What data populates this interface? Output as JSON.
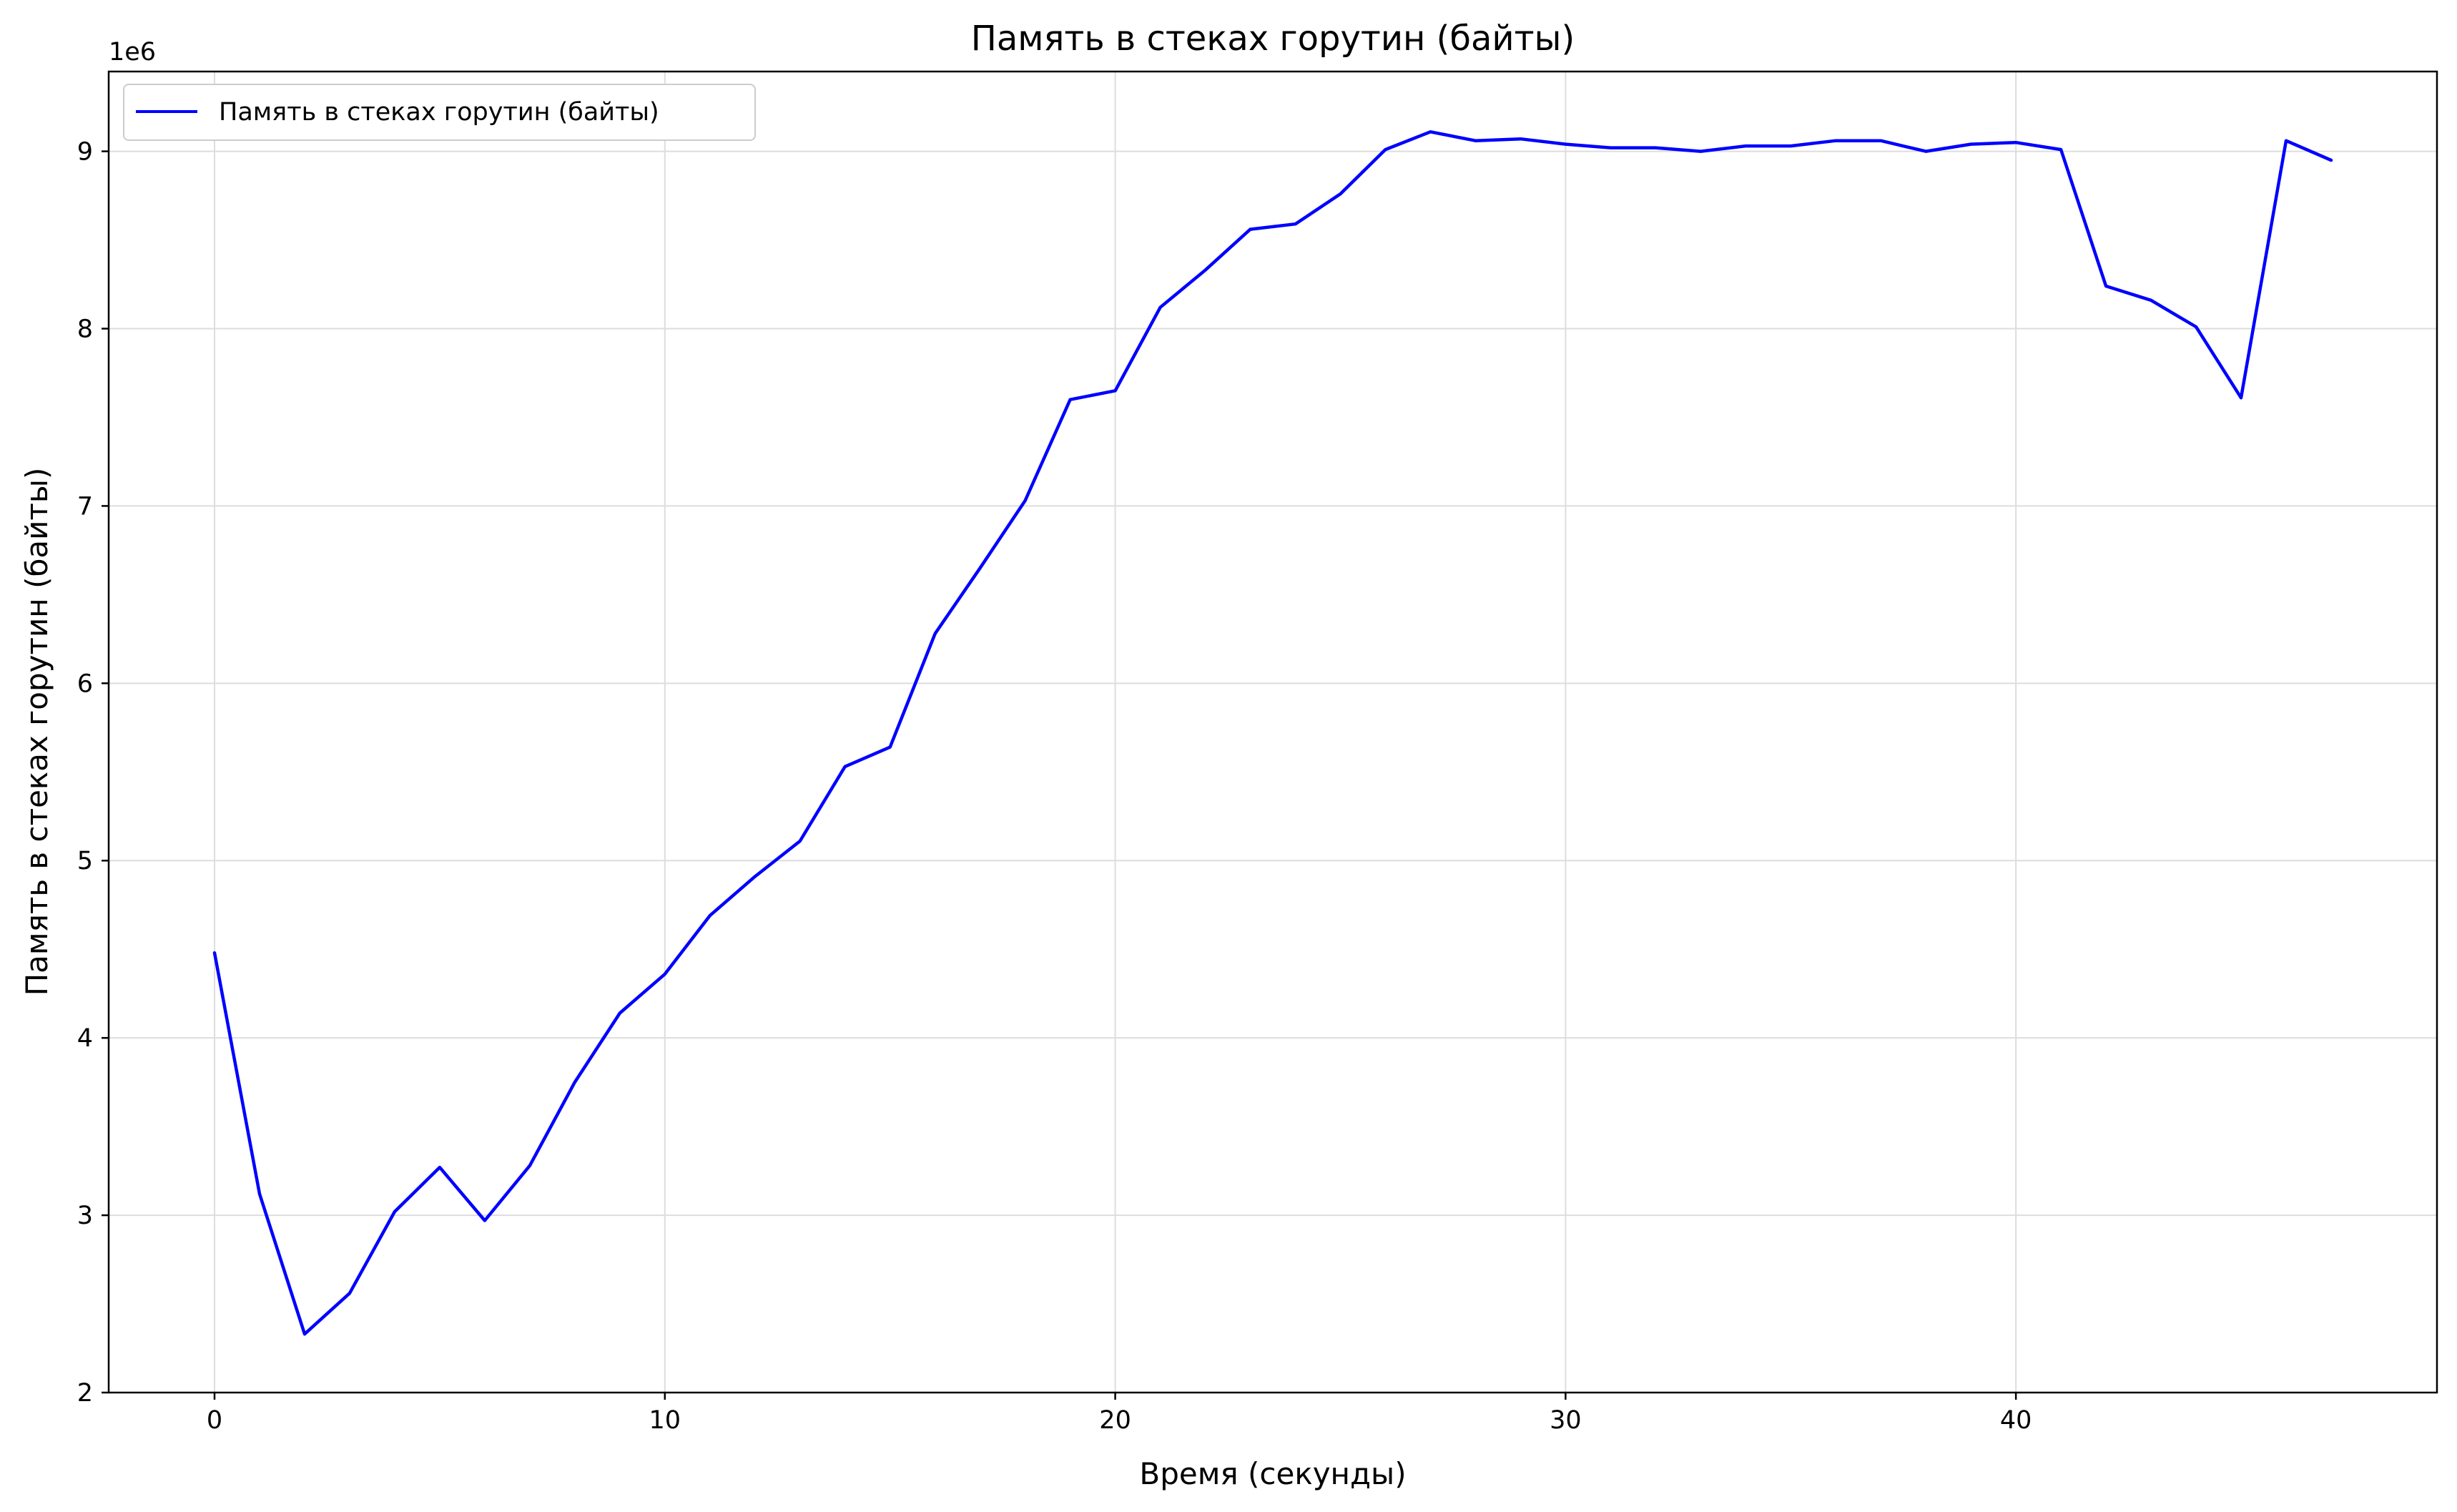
{
  "chart_data": {
    "type": "line",
    "title": "Память в стеках горутин (байты)",
    "xlabel": "Время (секунды)",
    "ylabel": "Память в стеках горутин (байты)",
    "y_offset_label": "1e6",
    "xlim": [
      -2.35,
      49.35
    ],
    "ylim": [
      2000000,
      9450000
    ],
    "x_ticks": [
      0,
      10,
      20,
      30,
      40
    ],
    "x_tick_labels": [
      "0",
      "10",
      "20",
      "30",
      "40"
    ],
    "y_ticks": [
      2000000,
      3000000,
      4000000,
      5000000,
      6000000,
      7000000,
      8000000,
      9000000
    ],
    "y_tick_labels": [
      "2",
      "3",
      "4",
      "5",
      "6",
      "7",
      "8",
      "9"
    ],
    "grid": true,
    "legend_position": "upper-left",
    "colors": {
      "series": "#0000ff",
      "grid": "#dddddd",
      "axes": "#000000"
    },
    "series": [
      {
        "name": "Память в стеках горутин (байты)",
        "x": [
          0,
          1,
          2,
          3,
          4,
          5,
          6,
          7,
          8,
          9,
          10,
          11,
          12,
          13,
          14,
          15,
          16,
          17,
          18,
          19,
          20,
          21,
          22,
          23,
          24,
          25,
          26,
          27,
          28,
          29,
          30,
          31,
          32,
          33,
          34,
          35,
          36,
          37,
          38,
          39,
          40,
          41,
          42,
          43,
          44,
          45,
          46,
          47
        ],
        "values": [
          4480000,
          3120000,
          2330000,
          2560000,
          3020000,
          3270000,
          2970000,
          3280000,
          3750000,
          4140000,
          4360000,
          4690000,
          4910000,
          5110000,
          5530000,
          5640000,
          6280000,
          6650000,
          7030000,
          7600000,
          7650000,
          8120000,
          8330000,
          8560000,
          8590000,
          8760000,
          9010000,
          9110000,
          9060000,
          9070000,
          9040000,
          9020000,
          9020000,
          9000000,
          9030000,
          9030000,
          9060000,
          9060000,
          9000000,
          9040000,
          9050000,
          9010000,
          8240000,
          8160000,
          8010000,
          7610000,
          9060000,
          8950000
        ]
      }
    ]
  }
}
